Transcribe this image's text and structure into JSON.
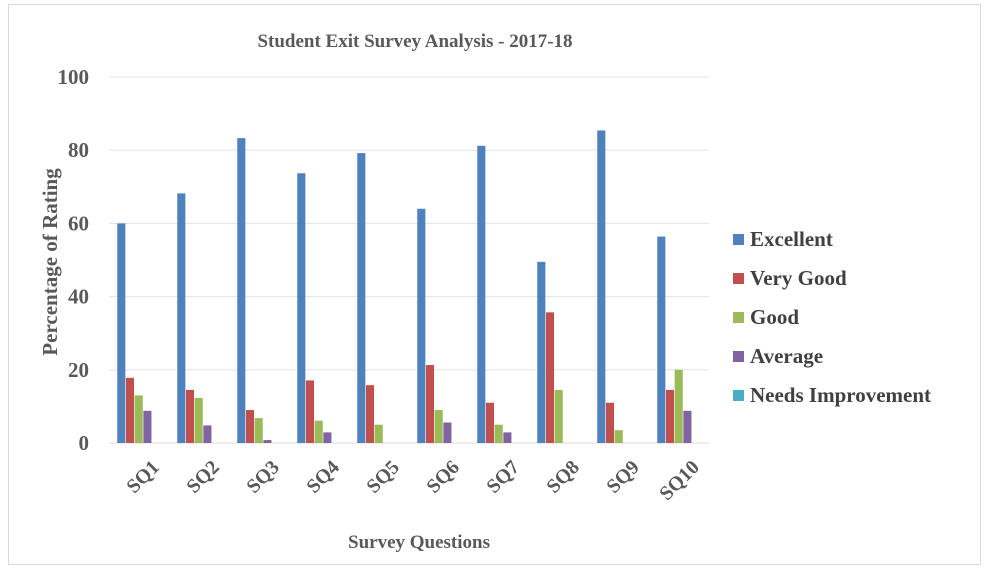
{
  "chart_data": {
    "type": "bar",
    "title": "Student Exit Survey Analysis - 2017-18",
    "xlabel": "Survey Questions",
    "ylabel": "Percentage of Rating",
    "ylim": [
      0,
      100
    ],
    "yticks": [
      0,
      20,
      40,
      60,
      80,
      100
    ],
    "grid": true,
    "legend_position": "right",
    "categories": [
      "SQ1",
      "SQ2",
      "SQ3",
      "SQ4",
      "SQ5",
      "SQ6",
      "SQ7",
      "SQ8",
      "SQ9",
      "SQ10"
    ],
    "series": [
      {
        "name": "Excellent",
        "color": "#4f81bd",
        "values": [
          60,
          68.2,
          83.3,
          73.7,
          79.2,
          64,
          81.2,
          49.5,
          85.4,
          56.4
        ]
      },
      {
        "name": "Very Good",
        "color": "#c0504d",
        "values": [
          17.8,
          14.5,
          9,
          17.1,
          15.8,
          21.3,
          11,
          35.7,
          11,
          14.5
        ]
      },
      {
        "name": "Good",
        "color": "#9bbb59",
        "values": [
          13,
          12.3,
          6.8,
          6.1,
          5,
          9,
          5,
          14.5,
          3.5,
          20
        ]
      },
      {
        "name": "Average",
        "color": "#8064a2",
        "values": [
          8.8,
          4.8,
          0.8,
          2.9,
          0,
          5.6,
          2.9,
          0,
          0,
          8.8
        ]
      },
      {
        "name": "Needs Improvement",
        "color": "#4bacc6",
        "values": [
          0,
          0,
          0,
          0,
          0,
          0,
          0,
          0,
          0,
          0
        ]
      }
    ]
  }
}
